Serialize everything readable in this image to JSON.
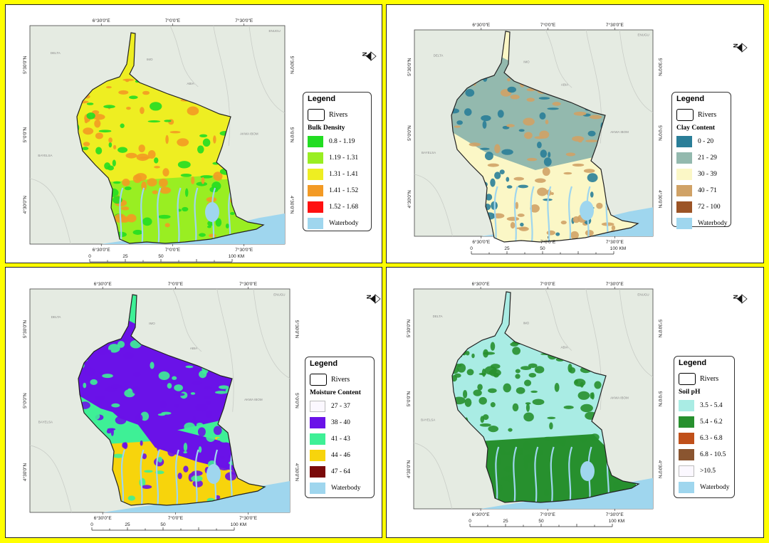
{
  "panels": [
    {
      "id": "bulk-density",
      "legend_title": "Legend",
      "rivers_label": "Rivers",
      "variable_title": "Bulk Density",
      "classes": [
        {
          "label": "0.8 - 1.19",
          "color": "#22dd22"
        },
        {
          "label": "1.19 - 1.31",
          "color": "#99ee22"
        },
        {
          "label": "1.31 - 1.41",
          "color": "#eeee22"
        },
        {
          "label": "1.41 - 1.52",
          "color": "#f39a24"
        },
        {
          "label": "1.52 - 1.68",
          "color": "#ff1010"
        }
      ],
      "waterbody_label": "Waterbody",
      "map": {
        "north": "#99ee22",
        "south": "#99ee22",
        "mid": "#eeee22",
        "patches": "#f39a24",
        "speckle": "#22dd22"
      }
    },
    {
      "id": "clay-content",
      "legend_title": "Legend",
      "rivers_label": "Rivers",
      "variable_title": "Clay Content",
      "classes": [
        {
          "label": "0 - 20",
          "color": "#2a7e98"
        },
        {
          "label": "21 - 29",
          "color": "#93b9ae"
        },
        {
          "label": "30 - 39",
          "color": "#fbf7c6"
        },
        {
          "label": "40 - 71",
          "color": "#d0a266"
        },
        {
          "label": "72 - 100",
          "color": "#9c5426"
        }
      ],
      "waterbody_label": "Waterbody",
      "map": {
        "north": "#93b9ae",
        "south": "#fbf7c6",
        "mid": "#fbf7c6",
        "patches": "#d0a266",
        "speckle": "#2a7e98"
      }
    },
    {
      "id": "moisture-content",
      "legend_title": "Legend",
      "rivers_label": "Rivers",
      "variable_title": "Moisture Content",
      "classes": [
        {
          "label": "27 - 37",
          "color": "#fbf8ff"
        },
        {
          "label": "38 - 40",
          "color": "#6a12e8"
        },
        {
          "label": "41 - 43",
          "color": "#3ef096"
        },
        {
          "label": "44 - 46",
          "color": "#f7d40c"
        },
        {
          "label": "47 - 64",
          "color": "#7a0a0a"
        }
      ],
      "waterbody_label": "Waterbody",
      "map": {
        "north": "#6a12e8",
        "south": "#f7d40c",
        "mid": "#3ef096",
        "patches": "#3ef096",
        "speckle": "#6a12e8"
      }
    },
    {
      "id": "soil-ph",
      "legend_title": "Legend",
      "rivers_label": "Rivers",
      "variable_title": "Soil pH",
      "classes": [
        {
          "label": "3.5 - 5.4",
          "color": "#a9ece4"
        },
        {
          "label": "5.4 - 6.2",
          "color": "#27902e"
        },
        {
          "label": "6.3 - 6.8",
          "color": "#c0501a"
        },
        {
          "label": "6.8 - 10.5",
          "color": "#8a5530"
        },
        {
          "label": ">10.5",
          "color": "#fbf8ff"
        }
      ],
      "waterbody_label": "Waterbody",
      "map": {
        "north": "#a9ece4",
        "south": "#27902e",
        "mid": "#a9ece4",
        "patches": "#27902e",
        "speckle": "#27902e"
      }
    }
  ],
  "axes": {
    "top_ticks": [
      "6°30'0\"E",
      "7°0'0\"E",
      "7°30'0\"E"
    ],
    "side_ticks": [
      "5°30'0\"N",
      "5°0'0\"N",
      "4°30'0\"N"
    ],
    "scale_labels": [
      "0",
      "25",
      "50",
      "100 KM"
    ]
  },
  "place_names": [
    "DELTA",
    "IMO",
    "ABIA",
    "AKWA IBOM",
    "BAYELSA",
    "ENUGU"
  ],
  "north_arrow_label": "N",
  "colors": {
    "frame": "#ffff00",
    "land_bg": "#e5ebe2",
    "sea": "#9fd6ee",
    "boundary": "#c9cdc7"
  }
}
